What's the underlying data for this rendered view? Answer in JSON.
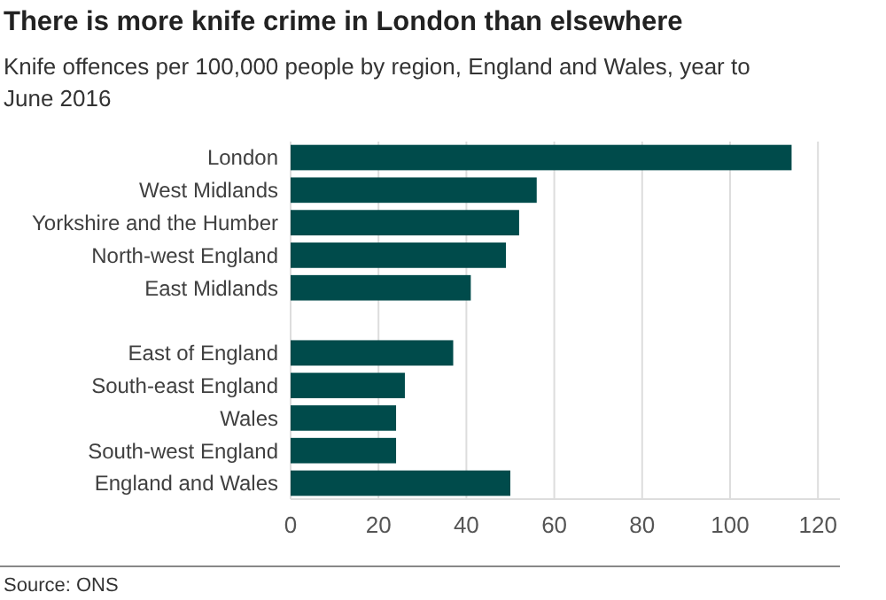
{
  "chart_data": {
    "type": "bar",
    "orientation": "horizontal",
    "title": "There is more knife crime in London than elsewhere",
    "subtitle": "Knife offences per 100,000 people by region, England and Wales, year to June 2016",
    "categories": [
      "London",
      "West Midlands",
      "Yorkshire and the Humber",
      "North-west England",
      "East Midlands",
      null,
      "East of England",
      "South-east England",
      "Wales",
      "South-west England",
      "England and Wales"
    ],
    "values": [
      114,
      56,
      52,
      49,
      41,
      null,
      37,
      26,
      24,
      24,
      50
    ],
    "color": "#004b4b",
    "xlim": [
      0,
      125
    ],
    "xticks": [
      0,
      20,
      40,
      60,
      80,
      100,
      120
    ],
    "grid": "x",
    "annotations": [
      "Source: ONS"
    ]
  }
}
